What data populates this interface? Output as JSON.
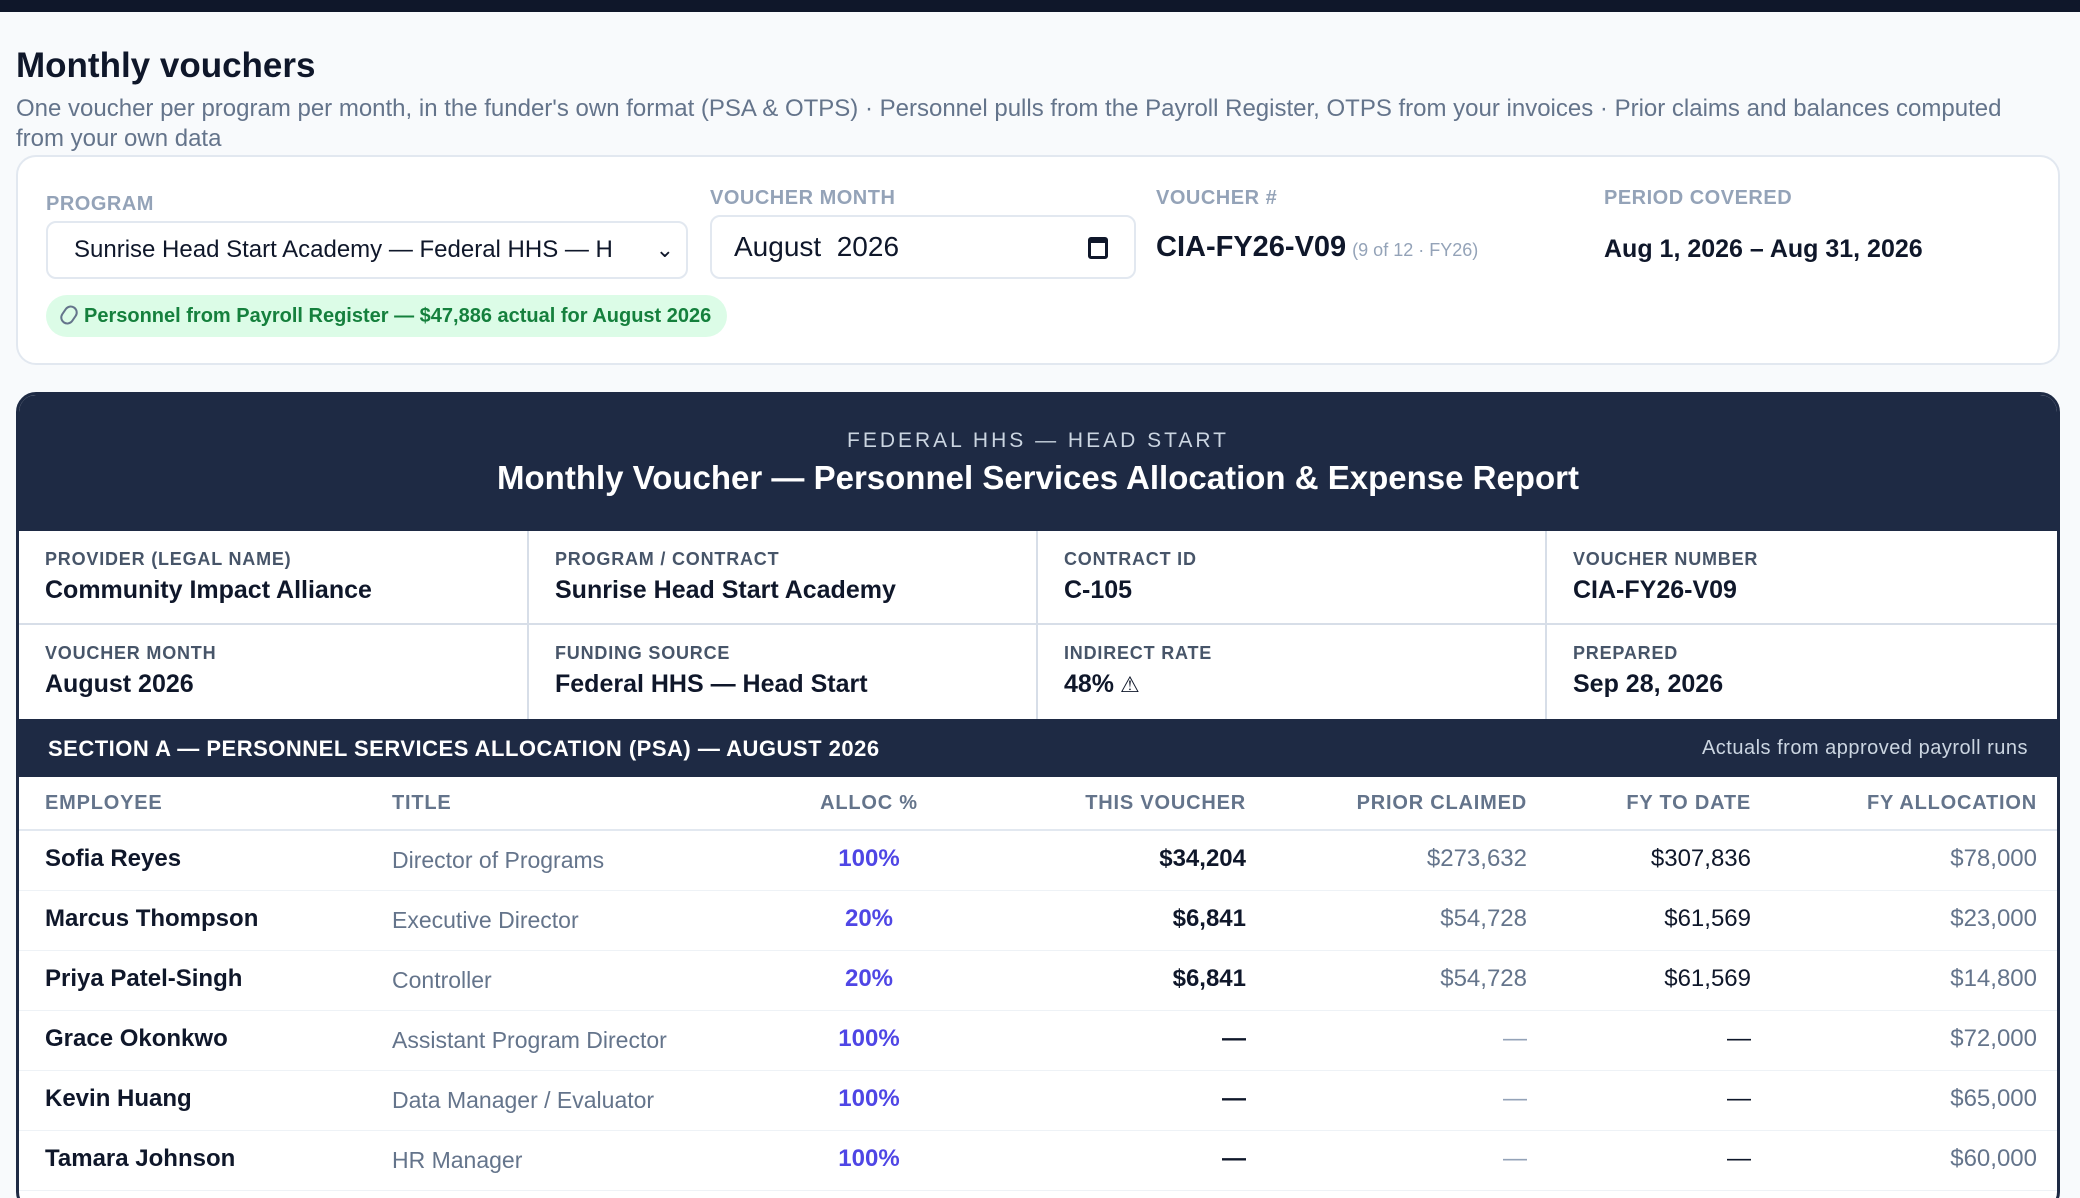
{
  "page": {
    "title": "Monthly vouchers",
    "subtitle": "One voucher per program per month, in the funder's own format (PSA & OTPS) · Personnel pulls from the Payroll Register, OTPS from your invoices · Prior claims and balances computed from your own data"
  },
  "controls": {
    "program_label": "PROGRAM",
    "program_value": "Sunrise Head Start Academy — Federal HHS — H",
    "month_label": "VOUCHER MONTH",
    "month_value": "August  2026",
    "voucher_label": "VOUCHER #",
    "voucher_value": "CIA-FY26-V09",
    "voucher_sub": "(9 of 12 · FY26)",
    "period_label": "PERIOD COVERED",
    "period_value": "Aug 1, 2026 – Aug 31, 2026",
    "payroll_pill": "Personnel from Payroll Register — $47,886 actual for August 2026"
  },
  "voucher": {
    "funder": "FEDERAL HHS — HEAD START",
    "title": "Monthly Voucher — Personnel Services Allocation & Expense Report",
    "meta": {
      "provider_label": "PROVIDER (LEGAL NAME)",
      "provider_value": "Community Impact Alliance",
      "program_label": "PROGRAM / CONTRACT",
      "program_value": "Sunrise Head Start Academy",
      "contract_label": "CONTRACT ID",
      "contract_value": "C-105",
      "vnum_label": "VOUCHER NUMBER",
      "vnum_value": "CIA-FY26-V09",
      "month_label": "VOUCHER MONTH",
      "month_value": "August 2026",
      "funding_label": "FUNDING SOURCE",
      "funding_value": "Federal HHS — Head Start",
      "indirect_label": "INDIRECT RATE",
      "indirect_value": "48%",
      "prepared_label": "PREPARED",
      "prepared_value": "Sep 28, 2026"
    },
    "section_a": {
      "title": "SECTION A — PERSONNEL SERVICES ALLOCATION (PSA) — AUGUST 2026",
      "note": "Actuals from approved payroll runs",
      "headers": {
        "employee": "EMPLOYEE",
        "title": "TITLE",
        "alloc": "ALLOC %",
        "this": "THIS VOUCHER",
        "prior": "PRIOR CLAIMED",
        "fytd": "FY TO DATE",
        "fyalloc": "FY ALLOCATION"
      },
      "rows": [
        {
          "employee": "Sofia Reyes",
          "title": "Director of Programs",
          "alloc": "100%",
          "this": "$34,204",
          "prior": "$273,632",
          "fytd": "$307,836",
          "fyalloc": "$78,000"
        },
        {
          "employee": "Marcus Thompson",
          "title": "Executive Director",
          "alloc": "20%",
          "this": "$6,841",
          "prior": "$54,728",
          "fytd": "$61,569",
          "fyalloc": "$23,000"
        },
        {
          "employee": "Priya Patel-Singh",
          "title": "Controller",
          "alloc": "20%",
          "this": "$6,841",
          "prior": "$54,728",
          "fytd": "$61,569",
          "fyalloc": "$14,800"
        },
        {
          "employee": "Grace Okonkwo",
          "title": "Assistant Program Director",
          "alloc": "100%",
          "this": "—",
          "prior": "—",
          "fytd": "—",
          "fyalloc": "$72,000"
        },
        {
          "employee": "Kevin Huang",
          "title": "Data Manager / Evaluator",
          "alloc": "100%",
          "this": "—",
          "prior": "—",
          "fytd": "—",
          "fyalloc": "$65,000"
        },
        {
          "employee": "Tamara Johnson",
          "title": "HR Manager",
          "alloc": "100%",
          "this": "—",
          "prior": "—",
          "fytd": "—",
          "fyalloc": "$60,000"
        }
      ]
    }
  }
}
